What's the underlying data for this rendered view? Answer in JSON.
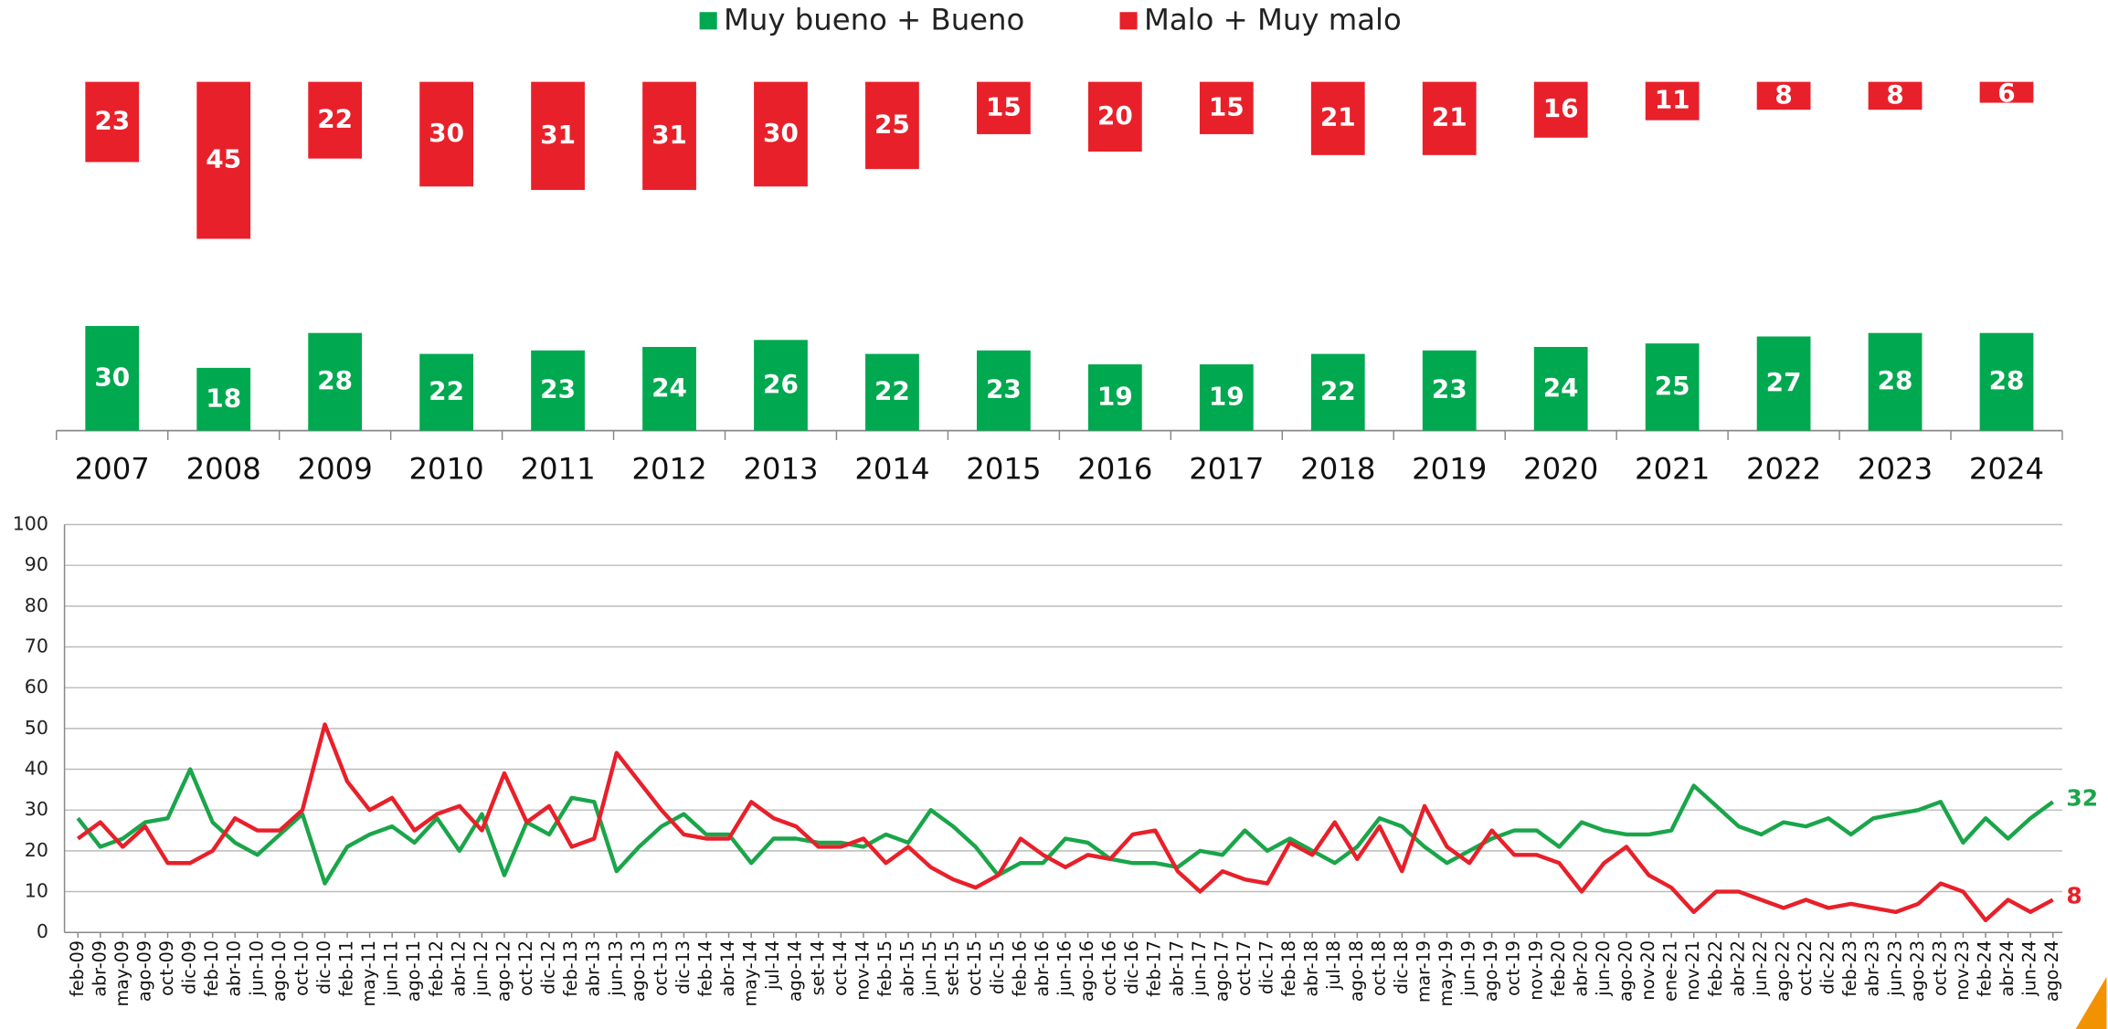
{
  "chart_data": [
    {
      "type": "bar",
      "categories": [
        "2007",
        "2008",
        "2009",
        "2010",
        "2011",
        "2012",
        "2013",
        "2014",
        "2015",
        "2016",
        "2017",
        "2018",
        "2019",
        "2020",
        "2021",
        "2022",
        "2023",
        "2024"
      ],
      "series": [
        {
          "name": "Muy bueno + Bueno",
          "color": "#00a84f",
          "values": [
            30,
            18,
            28,
            22,
            23,
            24,
            26,
            22,
            23,
            19,
            19,
            22,
            23,
            24,
            25,
            27,
            28,
            28
          ]
        },
        {
          "name": "Malo + Muy malo",
          "color": "#e8202a",
          "values": [
            23,
            45,
            22,
            30,
            31,
            31,
            30,
            25,
            15,
            20,
            15,
            21,
            21,
            16,
            11,
            8,
            8,
            6
          ]
        }
      ]
    },
    {
      "type": "line",
      "categories": [
        "feb-09",
        "abr-09",
        "may-09",
        "ago-09",
        "oct-09",
        "dic-09",
        "feb-10",
        "abr-10",
        "jun-10",
        "ago-10",
        "oct-10",
        "dic-10",
        "feb-11",
        "may-11",
        "jun-11",
        "ago-11",
        "feb-12",
        "abr-12",
        "jun-12",
        "ago-12",
        "oct-12",
        "dic-12",
        "feb-13",
        "abr-13",
        "jun-13",
        "ago-13",
        "oct-13",
        "dic-13",
        "feb-14",
        "abr-14",
        "may-14",
        "jul-14",
        "ago-14",
        "set-14",
        "oct-14",
        "nov-14",
        "feb-15",
        "abr-15",
        "jun-15",
        "set-15",
        "oct-15",
        "dic-15",
        "feb-16",
        "abr-16",
        "jun-16",
        "ago-16",
        "oct-16",
        "dic-16",
        "feb-17",
        "abr-17",
        "jun-17",
        "ago-17",
        "oct-17",
        "dic-17",
        "feb-18",
        "abr-18",
        "jul-18",
        "ago-18",
        "oct-18",
        "dic-18",
        "mar-19",
        "may-19",
        "jun-19",
        "ago-19",
        "oct-19",
        "nov-19",
        "feb-20",
        "abr-20",
        "jun-20",
        "ago-20",
        "nov-20",
        "ene-21",
        "nov-21",
        "feb-22",
        "abr-22",
        "jun-22",
        "ago-22",
        "oct-22",
        "dic-22",
        "feb-23",
        "abr-23",
        "jun-23",
        "ago-23",
        "oct-23",
        "nov-23",
        "feb-24",
        "abr-24",
        "jun-24",
        "ago-24"
      ],
      "series": [
        {
          "color": "#1aa54a",
          "values": [
            28,
            21,
            23,
            27,
            28,
            40,
            27,
            22,
            19,
            24,
            29,
            12,
            21,
            24,
            26,
            22,
            28,
            20,
            29,
            14,
            27,
            24,
            33,
            32,
            15,
            21,
            26,
            29,
            24,
            24,
            17,
            23,
            23,
            22,
            22,
            21,
            24,
            22,
            30,
            26,
            21,
            14,
            17,
            17,
            23,
            22,
            18,
            17,
            17,
            16,
            20,
            19,
            25,
            20,
            23,
            20,
            17,
            21,
            28,
            26,
            21,
            17,
            20,
            23,
            25,
            25,
            21,
            27,
            25,
            24,
            24,
            25,
            36,
            31,
            26,
            24,
            27,
            26,
            28,
            24,
            28,
            29,
            30,
            32,
            22,
            28,
            23,
            28,
            32
          ]
        },
        {
          "color": "#e8202a",
          "values": [
            23,
            27,
            21,
            26,
            17,
            17,
            20,
            28,
            25,
            25,
            30,
            51,
            37,
            30,
            33,
            25,
            29,
            31,
            25,
            39,
            27,
            31,
            21,
            23,
            44,
            37,
            30,
            24,
            23,
            23,
            32,
            28,
            26,
            21,
            21,
            23,
            17,
            21,
            16,
            13,
            11,
            14,
            23,
            19,
            16,
            19,
            18,
            24,
            25,
            15,
            10,
            15,
            13,
            12,
            22,
            19,
            27,
            18,
            26,
            15,
            31,
            21,
            17,
            25,
            19,
            19,
            17,
            10,
            17,
            21,
            14,
            11,
            5,
            10,
            10,
            8,
            6,
            8,
            6,
            7,
            6,
            5,
            7,
            12,
            10,
            3,
            8,
            5,
            8
          ]
        }
      ],
      "ylim": [
        0,
        100
      ],
      "yticks": [
        0,
        10,
        20,
        30,
        40,
        50,
        60,
        70,
        80,
        90,
        100
      ],
      "grid": true
    }
  ]
}
